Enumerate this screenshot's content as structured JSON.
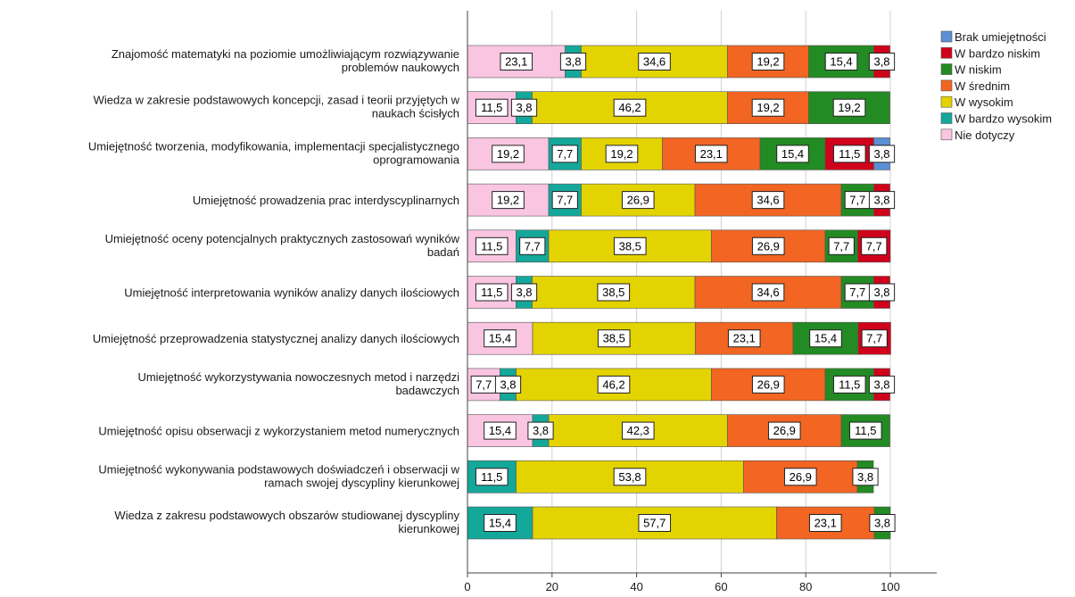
{
  "chart_data": {
    "type": "bar",
    "orientation": "horizontal",
    "stacked": true,
    "xlim": [
      0,
      100
    ],
    "x_ticks": [
      0,
      20,
      40,
      60,
      80,
      100
    ],
    "grid": true,
    "legend_position": "top-right",
    "legend_entries": [
      {
        "name": "Brak umiejętności",
        "color": "#5b8fd6"
      },
      {
        "name": "W bardzo niskim",
        "color": "#d0021b"
      },
      {
        "name": "W niskim",
        "color": "#238b23"
      },
      {
        "name": "W średnim",
        "color": "#f26522"
      },
      {
        "name": "W wysokim",
        "color": "#e3d300"
      },
      {
        "name": "W bardzo wysokim",
        "color": "#14a89a"
      },
      {
        "name": "Nie dotyczy",
        "color": "#f9c5e1"
      }
    ],
    "stack_order": [
      "Nie dotyczy",
      "W bardzo wysokim",
      "W wysokim",
      "W średnim",
      "W niskim",
      "W bardzo niskim",
      "Brak umiejętności"
    ],
    "categories": [
      [
        "Znajomość matematyki na poziomie umożliwiającym rozwiązywanie",
        "problemów naukowych"
      ],
      [
        "Wiedza w zakresie podstawowych koncepcji, zasad i teorii przyjętych w",
        "naukach ścisłych"
      ],
      [
        "Umiejętność tworzenia, modyfikowania, implementacji specjalistycznego",
        "oprogramowania"
      ],
      [
        "Umiejętność prowadzenia prac interdyscyplinarnych"
      ],
      [
        "Umiejętność oceny potencjalnych praktycznych zastosowań wyników",
        "badań"
      ],
      [
        "Umiejętność interpretowania wyników analizy danych ilościowych"
      ],
      [
        "Umiejętność przeprowadzenia statystycznej analizy danych ilościowych"
      ],
      [
        "Umiejętność wykorzystywania nowoczesnych metod i narzędzi",
        "badawczych"
      ],
      [
        "Umiejętność opisu obserwacji z wykorzystaniem metod numerycznych"
      ],
      [
        "Umiejętność wykonywania podstawowych doświadczeń i obserwacji w",
        "ramach swojej dyscypliny kierunkowej"
      ],
      [
        "Wiedza z zakresu podstawowych obszarów studiowanej dyscypliny",
        "kierunkowej"
      ]
    ],
    "series": [
      {
        "name": "Nie dotyczy",
        "values": [
          23.1,
          11.5,
          19.2,
          19.2,
          11.5,
          11.5,
          15.4,
          7.7,
          15.4,
          0,
          0
        ]
      },
      {
        "name": "W bardzo wysokim",
        "values": [
          3.8,
          3.8,
          7.7,
          7.7,
          7.7,
          3.8,
          0,
          3.8,
          3.8,
          11.5,
          15.4
        ]
      },
      {
        "name": "W wysokim",
        "values": [
          34.6,
          46.2,
          19.2,
          26.9,
          38.5,
          38.5,
          38.5,
          46.2,
          42.3,
          53.8,
          57.7
        ]
      },
      {
        "name": "W średnim",
        "values": [
          19.2,
          19.2,
          23.1,
          34.6,
          26.9,
          34.6,
          23.1,
          26.9,
          26.9,
          26.9,
          23.1
        ]
      },
      {
        "name": "W niskim",
        "values": [
          15.4,
          19.2,
          15.4,
          7.7,
          7.7,
          7.7,
          15.4,
          11.5,
          11.5,
          3.8,
          3.8
        ]
      },
      {
        "name": "W bardzo niskim",
        "values": [
          3.8,
          0,
          11.5,
          3.8,
          7.7,
          3.8,
          7.7,
          3.8,
          0,
          0,
          0
        ]
      },
      {
        "name": "Brak umiejętności",
        "values": [
          0,
          0,
          3.8,
          0,
          0,
          0,
          0,
          0,
          0,
          0,
          0
        ]
      }
    ],
    "labels": [
      [
        [
          "23,1",
          0
        ],
        [
          "3,8",
          1
        ],
        [
          "34,6",
          2
        ],
        [
          "19,2",
          3
        ],
        [
          "15,4",
          4
        ],
        [
          "3,8",
          5
        ]
      ],
      [
        [
          "11,5",
          0
        ],
        [
          "3,8",
          1
        ],
        [
          "46,2",
          2
        ],
        [
          "19,2",
          3
        ],
        [
          "19,2",
          4
        ]
      ],
      [
        [
          "19,2",
          0
        ],
        [
          "7,7",
          1
        ],
        [
          "19,2",
          2
        ],
        [
          "23,1",
          3
        ],
        [
          "15,4",
          4
        ],
        [
          "11,5",
          5
        ],
        [
          "3,8",
          6
        ]
      ],
      [
        [
          "19,2",
          0
        ],
        [
          "7,7",
          1
        ],
        [
          "26,9",
          2
        ],
        [
          "34,6",
          3
        ],
        [
          "7,7",
          4
        ],
        [
          "3,8",
          5
        ]
      ],
      [
        [
          "11,5",
          0
        ],
        [
          "7,7",
          1
        ],
        [
          "38,5",
          2
        ],
        [
          "26,9",
          3
        ],
        [
          "7,7",
          4
        ],
        [
          "7,7",
          5
        ]
      ],
      [
        [
          "11,5",
          0
        ],
        [
          "3,8",
          1
        ],
        [
          "38,5",
          2
        ],
        [
          "34,6",
          3
        ],
        [
          "7,7",
          4
        ],
        [
          "3,8",
          5
        ]
      ],
      [
        [
          "15,4",
          0
        ],
        [
          "38,5",
          2
        ],
        [
          "23,1",
          3
        ],
        [
          "15,4",
          4
        ],
        [
          "7,7",
          5
        ]
      ],
      [
        [
          "7,7",
          0
        ],
        [
          "3,8",
          1
        ],
        [
          "46,2",
          2
        ],
        [
          "26,9",
          3
        ],
        [
          "11,5",
          4
        ],
        [
          "3,8",
          5
        ]
      ],
      [
        [
          "15,4",
          0
        ],
        [
          "3,8",
          1
        ],
        [
          "42,3",
          2
        ],
        [
          "26,9",
          3
        ],
        [
          "11,5",
          4
        ]
      ],
      [
        [
          "11,5",
          1
        ],
        [
          "53,8",
          2
        ],
        [
          "26,9",
          3
        ],
        [
          "3,8",
          4
        ]
      ],
      [
        [
          "15,4",
          1
        ],
        [
          "57,7",
          2
        ],
        [
          "23,1",
          3
        ],
        [
          "3,8",
          4
        ]
      ]
    ]
  }
}
